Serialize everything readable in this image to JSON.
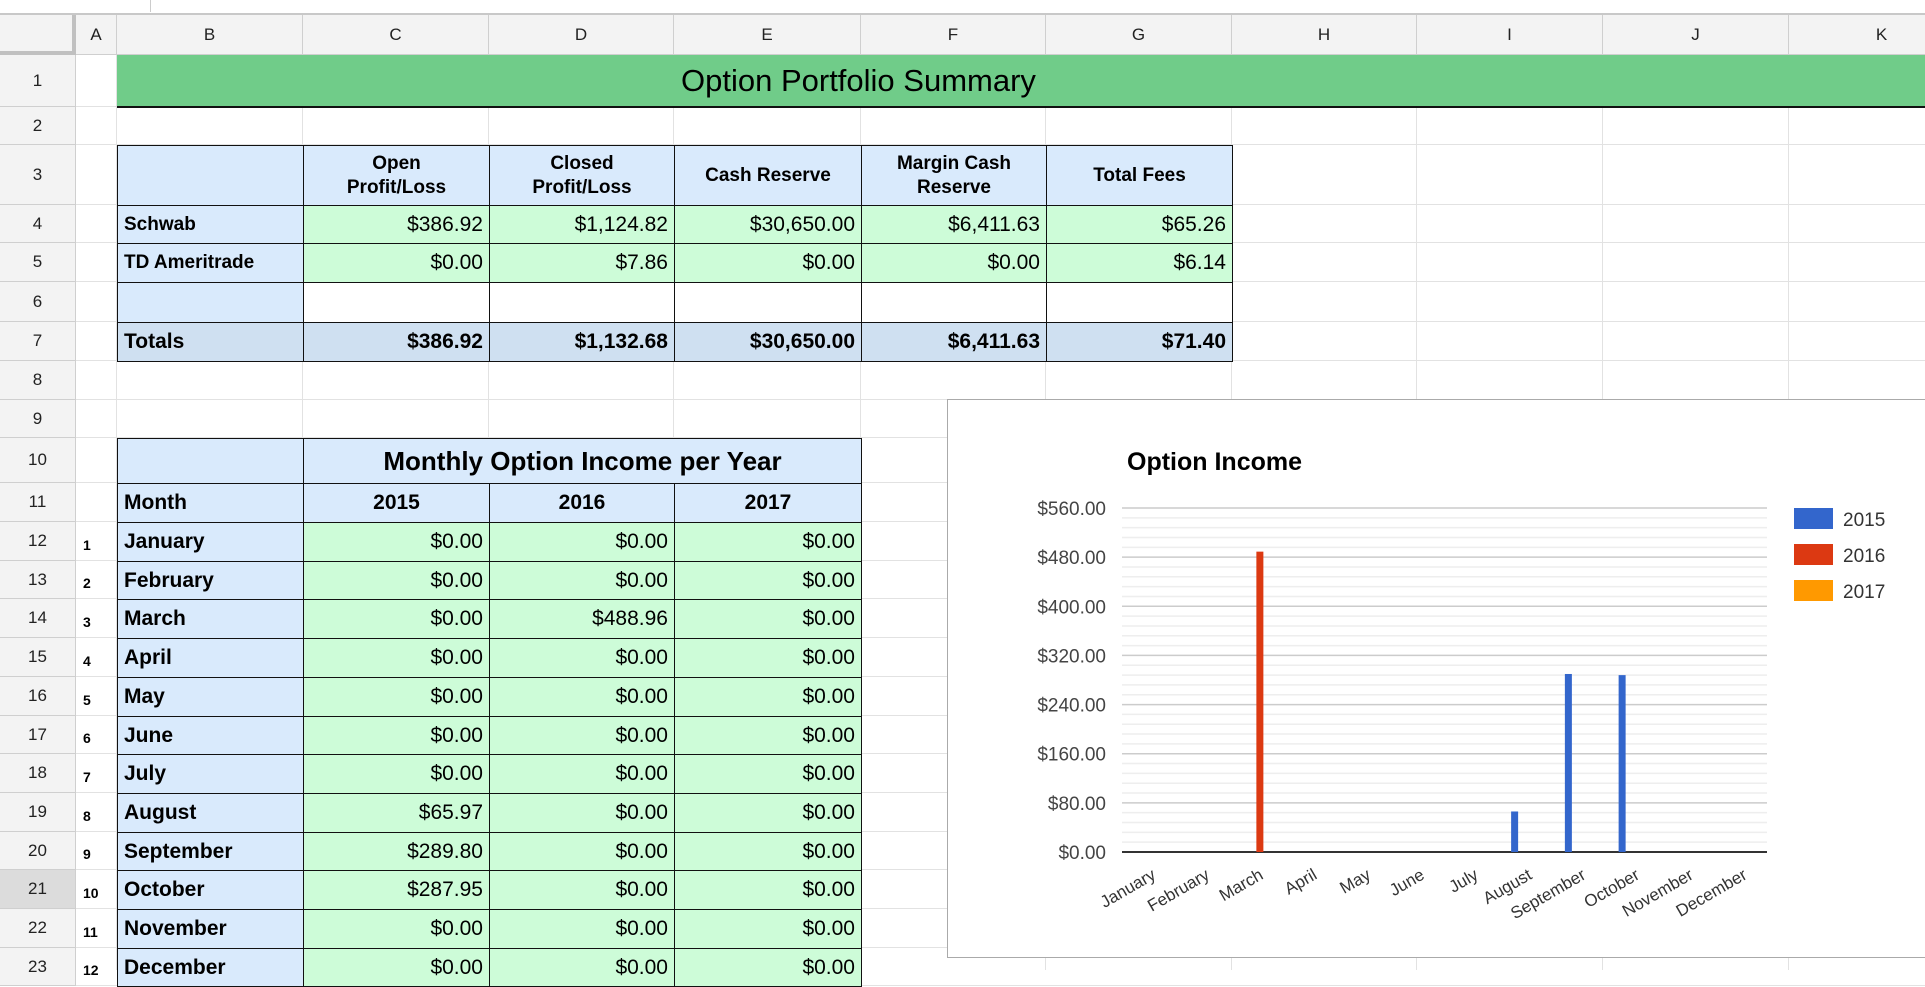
{
  "column_headers": [
    "A",
    "B",
    "C",
    "D",
    "E",
    "F",
    "G",
    "H",
    "I",
    "J",
    "K"
  ],
  "row_headers": [
    "1",
    "2",
    "3",
    "4",
    "5",
    "6",
    "7",
    "8",
    "9",
    "10",
    "11",
    "12",
    "13",
    "14",
    "15",
    "16",
    "17",
    "18",
    "19",
    "20",
    "21",
    "22",
    "23"
  ],
  "selected_row": "21",
  "summary": {
    "title": "Option Portfolio Summary",
    "headers": [
      "Open Profit/Loss",
      "Closed Profit/Loss",
      "Cash Reserve",
      "Margin Cash Reserve",
      "Total Fees"
    ],
    "rows": [
      {
        "label": "Schwab",
        "values": [
          "$386.92",
          "$1,124.82",
          "$30,650.00",
          "$6,411.63",
          "$65.26"
        ]
      },
      {
        "label": "TD Ameritrade",
        "values": [
          "$0.00",
          "$7.86",
          "$0.00",
          "$0.00",
          "$6.14"
        ]
      }
    ],
    "totals": {
      "label": "Totals",
      "values": [
        "$386.92",
        "$1,132.68",
        "$30,650.00",
        "$6,411.63",
        "$71.40"
      ]
    }
  },
  "monthly": {
    "title": "Monthly Option Income per Year",
    "month_header": "Month",
    "years": [
      "2015",
      "2016",
      "2017"
    ],
    "rows": [
      {
        "n": "1",
        "month": "January",
        "values": [
          "$0.00",
          "$0.00",
          "$0.00"
        ]
      },
      {
        "n": "2",
        "month": "February",
        "values": [
          "$0.00",
          "$0.00",
          "$0.00"
        ]
      },
      {
        "n": "3",
        "month": "March",
        "values": [
          "$0.00",
          "$488.96",
          "$0.00"
        ]
      },
      {
        "n": "4",
        "month": "April",
        "values": [
          "$0.00",
          "$0.00",
          "$0.00"
        ]
      },
      {
        "n": "5",
        "month": "May",
        "values": [
          "$0.00",
          "$0.00",
          "$0.00"
        ]
      },
      {
        "n": "6",
        "month": "June",
        "values": [
          "$0.00",
          "$0.00",
          "$0.00"
        ]
      },
      {
        "n": "7",
        "month": "July",
        "values": [
          "$0.00",
          "$0.00",
          "$0.00"
        ]
      },
      {
        "n": "8",
        "month": "August",
        "values": [
          "$65.97",
          "$0.00",
          "$0.00"
        ]
      },
      {
        "n": "9",
        "month": "September",
        "values": [
          "$289.80",
          "$0.00",
          "$0.00"
        ]
      },
      {
        "n": "10",
        "month": "October",
        "values": [
          "$287.95",
          "$0.00",
          "$0.00"
        ]
      },
      {
        "n": "11",
        "month": "November",
        "values": [
          "$0.00",
          "$0.00",
          "$0.00"
        ]
      },
      {
        "n": "12",
        "month": "December",
        "values": [
          "$0.00",
          "$0.00",
          "$0.00"
        ]
      }
    ]
  },
  "colors": {
    "header_green": "#70cc89",
    "header_blue": "#d9eafc",
    "value_green": "#cdfcd8",
    "totals_blue": "#cfe0f1"
  },
  "chart_data": {
    "type": "bar",
    "title": "Option Income",
    "categories": [
      "January",
      "February",
      "March",
      "April",
      "May",
      "June",
      "July",
      "August",
      "September",
      "October",
      "November",
      "December"
    ],
    "series": [
      {
        "name": "2015",
        "color": "#3366cc",
        "values": [
          0,
          0,
          0,
          0,
          0,
          0,
          0,
          65.97,
          289.8,
          287.95,
          0,
          0
        ]
      },
      {
        "name": "2016",
        "color": "#dc3912",
        "values": [
          0,
          0,
          488.96,
          0,
          0,
          0,
          0,
          0,
          0,
          0,
          0,
          0
        ]
      },
      {
        "name": "2017",
        "color": "#ff9900",
        "values": [
          0,
          0,
          0,
          0,
          0,
          0,
          0,
          0,
          0,
          0,
          0,
          0
        ]
      }
    ],
    "yticks": [
      "$0.00",
      "$80.00",
      "$160.00",
      "$240.00",
      "$320.00",
      "$400.00",
      "$480.00",
      "$560.00"
    ],
    "ylim": [
      0,
      560
    ],
    "grid": true,
    "legend": "right"
  }
}
